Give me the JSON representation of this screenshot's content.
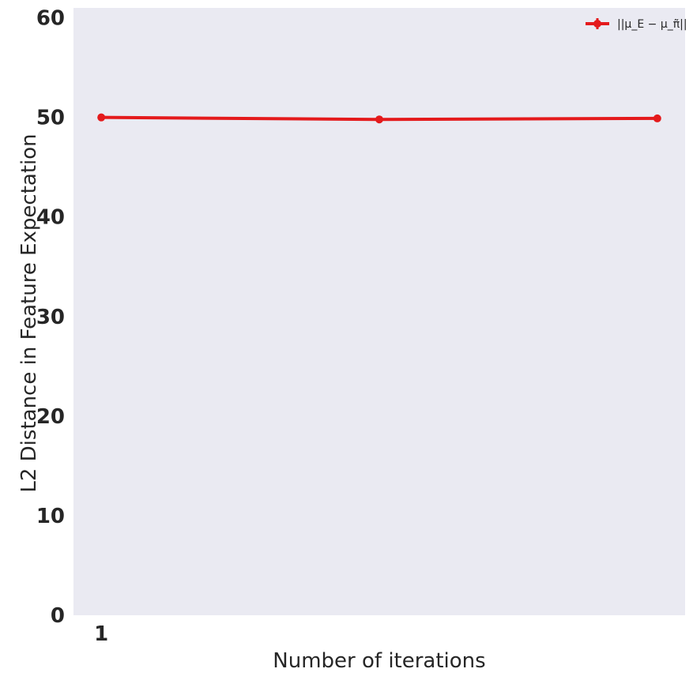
{
  "chart_data": {
    "type": "line",
    "title": "",
    "xlabel": "Number of iterations",
    "ylabel": "L2 Distance in Feature Expectation",
    "x": [
      1,
      2,
      3
    ],
    "x_tick_values": [
      1
    ],
    "x_tick_labels": [
      "1"
    ],
    "xlim": [
      0.9,
      3.1
    ],
    "ylim": [
      0,
      61
    ],
    "y_tick_values": [
      0,
      10,
      20,
      30,
      40,
      50,
      60
    ],
    "y_tick_labels": [
      "0",
      "10",
      "20",
      "30",
      "40",
      "50",
      "60"
    ],
    "grid": false,
    "legend_position": "top-right",
    "background_color": "#eaeaf2",
    "series": [
      {
        "name": "||μ_E − μ_π̃||",
        "values": [
          50.0,
          49.8,
          49.9
        ],
        "color": "#e41a1c"
      }
    ]
  }
}
